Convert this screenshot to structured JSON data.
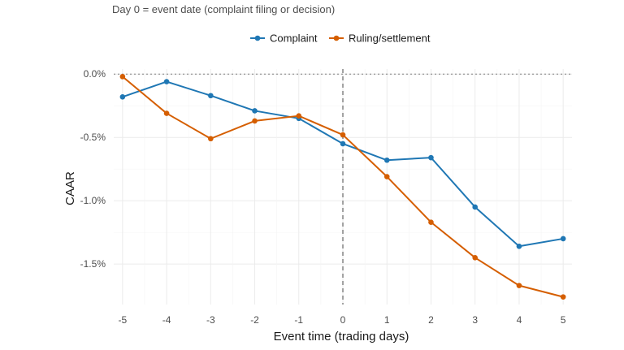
{
  "subtitle": "Day 0 = event date (complaint filing or decision)",
  "legend": {
    "position": "top-center"
  },
  "chart_data": {
    "type": "line",
    "xlabel": "Event time (trading days)",
    "ylabel": "CAAR",
    "x": [
      -5,
      -4,
      -3,
      -2,
      -1,
      0,
      1,
      2,
      3,
      4,
      5
    ],
    "x_tick_labels": [
      "-5",
      "-4",
      "-3",
      "-2",
      "-1",
      "0",
      "1",
      "2",
      "3",
      "4",
      "5"
    ],
    "y_ticks": [
      0.0,
      -0.5,
      -1.0,
      -1.5
    ],
    "y_tick_labels": [
      "0.0%",
      "-0.5%",
      "-1.0%",
      "-1.5%"
    ],
    "xlim": [
      -5.2,
      5.2
    ],
    "ylim": [
      -1.82,
      0.04
    ],
    "grid": true,
    "reference_lines": [
      {
        "axis": "y",
        "value": 0,
        "style": "dotted"
      },
      {
        "axis": "x",
        "value": 0,
        "style": "dashed"
      }
    ],
    "series": [
      {
        "name": "Complaint",
        "color": "#1f77b4",
        "values": [
          -0.18,
          -0.06,
          -0.17,
          -0.29,
          -0.35,
          -0.55,
          -0.68,
          -0.66,
          -1.05,
          -1.36,
          -1.3
        ]
      },
      {
        "name": "Ruling/settlement",
        "color": "#d55e00",
        "values": [
          -0.02,
          -0.31,
          -0.51,
          -0.37,
          -0.33,
          -0.48,
          -0.81,
          -1.17,
          -1.45,
          -1.67,
          -1.76
        ]
      }
    ]
  }
}
